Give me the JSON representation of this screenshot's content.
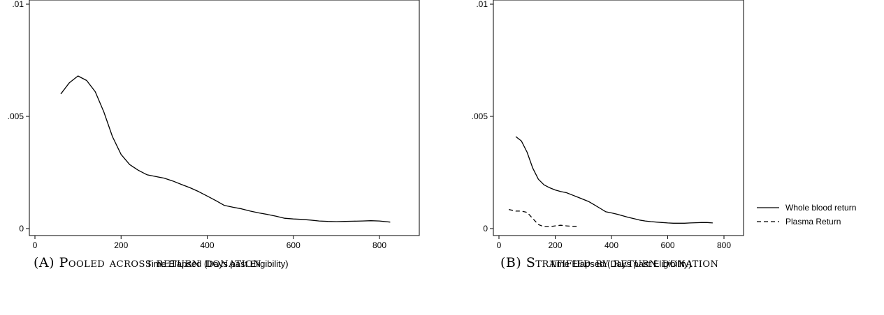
{
  "captions": {
    "a": "(A) Pooled across return donation",
    "b": "(B) Stratified by return donation"
  },
  "chart_data": [
    {
      "type": "line",
      "title": "",
      "xlabel": "Time Elapsed (Days past Eligibility)",
      "ylabel": "",
      "xlim": [
        0,
        850
      ],
      "ylim": [
        0,
        0.01
      ],
      "xticks": [
        0,
        200,
        400,
        600,
        800
      ],
      "yticks": [
        0,
        0.005,
        0.01
      ],
      "ytick_labels": [
        "0",
        ".005",
        ".01"
      ],
      "grid": false,
      "series": [
        {
          "name": "",
          "style": "solid",
          "x": [
            60,
            80,
            100,
            120,
            140,
            160,
            180,
            200,
            220,
            240,
            260,
            280,
            300,
            320,
            340,
            360,
            380,
            400,
            420,
            440,
            460,
            480,
            500,
            520,
            540,
            560,
            580,
            600,
            620,
            640,
            660,
            680,
            700,
            720,
            740,
            760,
            780,
            800,
            825
          ],
          "y": [
            0.006,
            0.0065,
            0.0068,
            0.0066,
            0.0061,
            0.0052,
            0.0041,
            0.0033,
            0.00285,
            0.0026,
            0.0024,
            0.00232,
            0.00225,
            0.00212,
            0.00197,
            0.00182,
            0.00165,
            0.00145,
            0.00125,
            0.00103,
            0.00095,
            0.00088,
            0.00078,
            0.0007,
            0.00063,
            0.00055,
            0.00046,
            0.00043,
            0.00041,
            0.00038,
            0.00034,
            0.00032,
            0.00031,
            0.00032,
            0.00033,
            0.00034,
            0.00035,
            0.00034,
            0.00029
          ]
        }
      ]
    },
    {
      "type": "line",
      "title": "",
      "xlabel": "Time Elapsed (Days past Eligibility)",
      "ylabel": "",
      "xlim": [
        0,
        850
      ],
      "ylim": [
        0,
        0.01
      ],
      "xticks": [
        0,
        200,
        400,
        600,
        800
      ],
      "yticks": [
        0,
        0.005,
        0.01
      ],
      "ytick_labels": [
        "0",
        ".005",
        ".01"
      ],
      "grid": false,
      "legend": "right",
      "series": [
        {
          "name": "Whole blood return",
          "style": "solid",
          "x": [
            60,
            80,
            100,
            120,
            140,
            160,
            180,
            200,
            220,
            240,
            260,
            280,
            300,
            320,
            340,
            360,
            380,
            400,
            420,
            440,
            460,
            480,
            500,
            520,
            540,
            560,
            580,
            600,
            620,
            640,
            660,
            680,
            700,
            720,
            740,
            760
          ],
          "y": [
            0.0041,
            0.0039,
            0.0034,
            0.0027,
            0.0022,
            0.00195,
            0.00182,
            0.00172,
            0.00165,
            0.0016,
            0.0015,
            0.0014,
            0.0013,
            0.0012,
            0.00105,
            0.0009,
            0.00075,
            0.0007,
            0.00064,
            0.00057,
            0.0005,
            0.00044,
            0.00038,
            0.00034,
            0.00031,
            0.00029,
            0.00027,
            0.00025,
            0.00024,
            0.00024,
            0.00024,
            0.00025,
            0.00026,
            0.00027,
            0.00027,
            0.00025
          ]
        },
        {
          "name": "Plasma Return",
          "style": "dashed",
          "x": [
            35,
            60,
            80,
            100,
            120,
            140,
            160,
            180,
            200,
            220,
            240,
            260,
            280
          ],
          "y": [
            0.00085,
            0.00078,
            0.00078,
            0.00072,
            0.00045,
            0.00018,
            8e-05,
            8e-05,
            0.00012,
            0.00015,
            0.00012,
            0.0001,
            0.0001
          ]
        }
      ]
    }
  ]
}
